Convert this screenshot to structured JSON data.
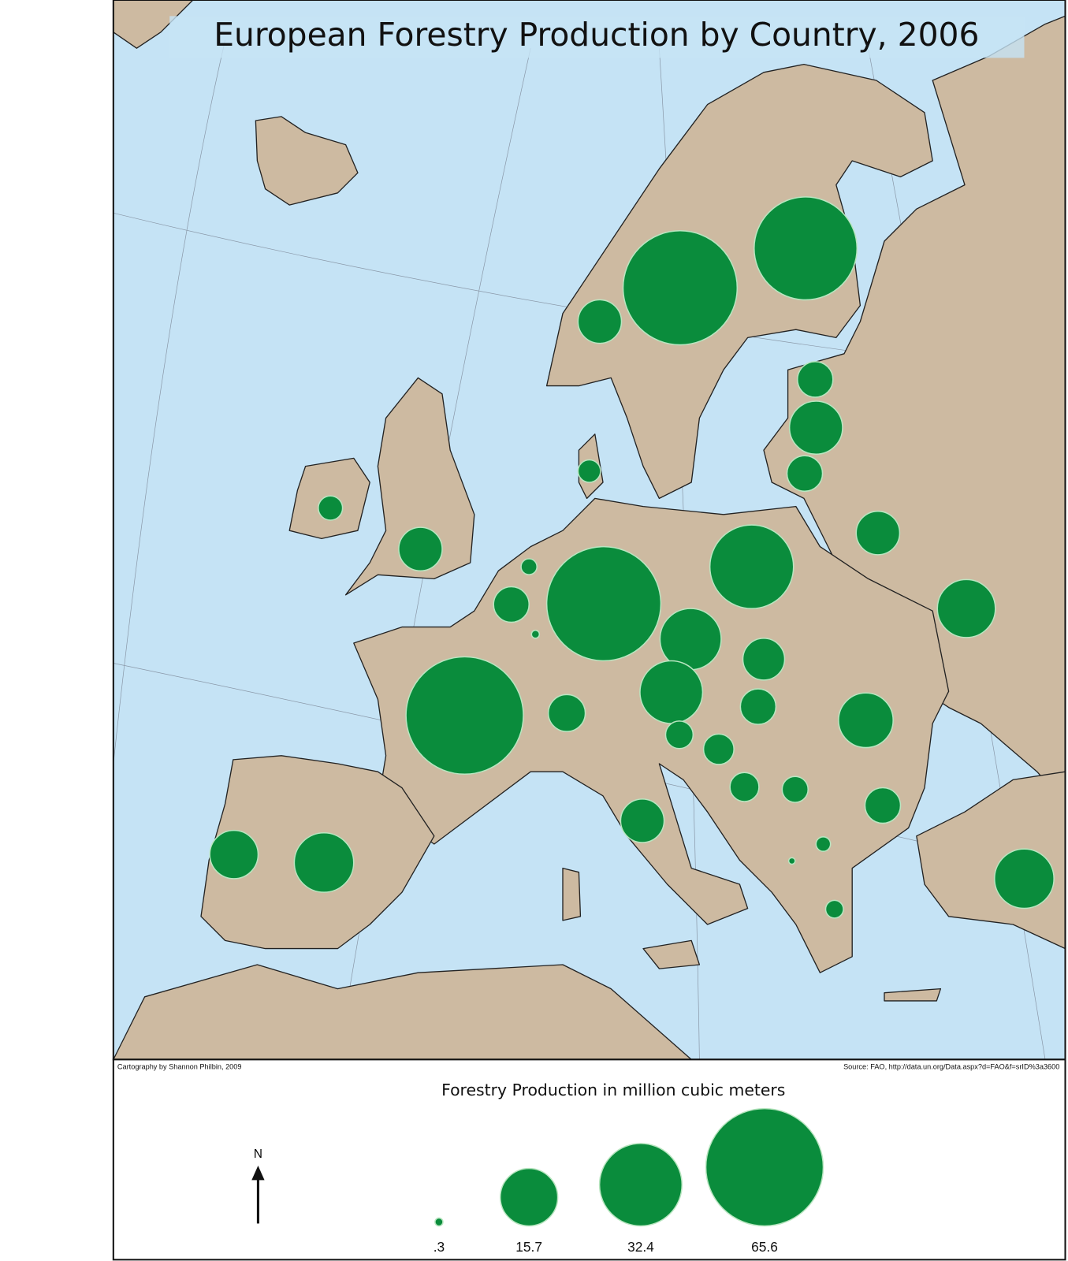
{
  "title": "European Forestry Production by Country, 2006",
  "credit": "Cartography by Shannon Philbin, 2009",
  "source": "Source: FAO, http://data.un.org/Data.aspx?d=FAO&f=srID%3a3600",
  "north_arrow": "N",
  "legend": {
    "title": "Forestry Production in million cubic meters",
    "values": [
      {
        "value": 0.3,
        "label": ".3"
      },
      15.7,
      32.4,
      65.6
    ]
  },
  "bubbles": {
    "color": "#0a8c3c",
    "values": [
      62,
      50.4,
      9.0,
      6.0,
      13.4,
      6.0,
      9.0,
      33.3,
      16.0,
      62,
      17.8,
      8.3,
      18.7,
      6.0,
      14.2,
      65.6,
      6.5,
      3.6,
      4.4,
      4.0,
      3.2,
      6.0,
      1.0,
      0.2,
      1.5,
      16.8,
      9.0,
      16.8,
      11.1,
      2.8,
      9.0,
      1.2,
      6.0,
      0.3,
      2.4
    ]
  }
}
